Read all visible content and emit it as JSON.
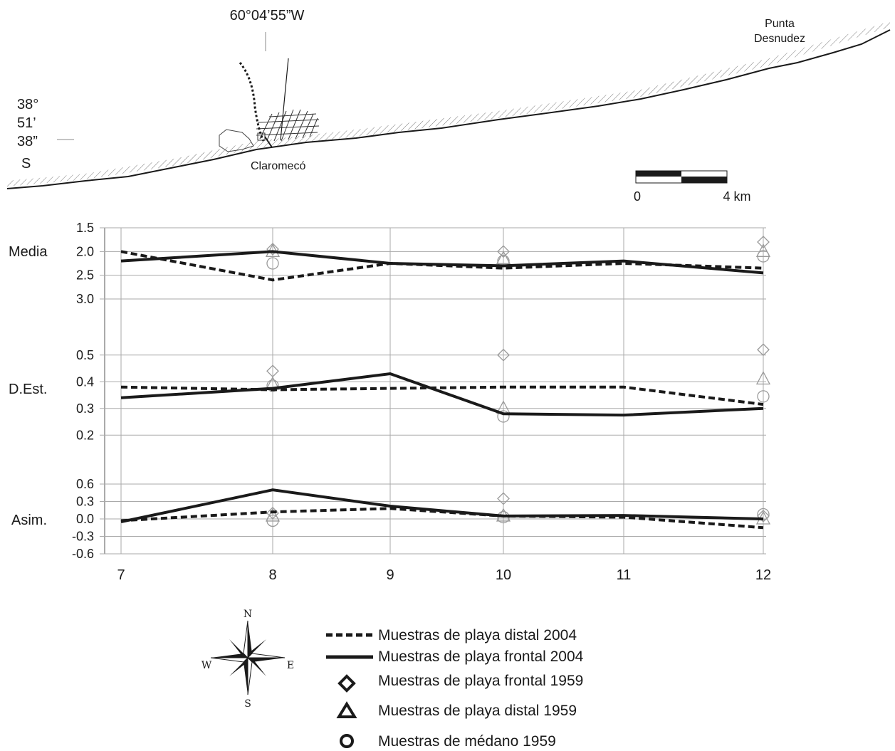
{
  "map": {
    "longitude_label": "60°04’55”W",
    "latitude_lines": [
      "38°",
      "51’",
      "38”",
      "S"
    ],
    "town_label": "Claromecó",
    "point_label_line1": "Punta",
    "point_label_line2": "Desnudez",
    "scale_start": "0",
    "scale_end": "4 km"
  },
  "compass": {
    "n": "N",
    "s": "S",
    "e": "E",
    "w": "W"
  },
  "chart_data": {
    "type": "line",
    "x": [
      7,
      8,
      9,
      10,
      11,
      12
    ],
    "x_ticks": [
      "7",
      "8",
      "9",
      "10",
      "11",
      "12"
    ],
    "grid": true,
    "panels": [
      {
        "name": "Media",
        "ylim": [
          3.3,
          1.5
        ],
        "y_ticks": [
          "1.5",
          "2.0",
          "2.5",
          "3.0"
        ],
        "y_tick_values": [
          1.5,
          2.0,
          2.5,
          3.0
        ],
        "series": {
          "distal_2004": [
            2.0,
            2.6,
            2.25,
            2.35,
            2.25,
            2.35
          ],
          "frontal_2004": [
            2.2,
            2.0,
            2.25,
            2.3,
            2.2,
            2.45
          ],
          "frontal_1959": [
            [
              8,
              1.95
            ],
            [
              10,
              2.0
            ],
            [
              12,
              1.8
            ]
          ],
          "distal_1959": [
            [
              8,
              2.0
            ],
            [
              10,
              2.15
            ],
            [
              12,
              2.0
            ]
          ],
          "medano_1959": [
            [
              8,
              2.25
            ],
            [
              10,
              2.2
            ],
            [
              12,
              2.1
            ]
          ]
        }
      },
      {
        "name": "D.Est.",
        "ylim": [
          0.15,
          0.55
        ],
        "y_ticks": [
          "0.5",
          "0.4",
          "0.3",
          "0.2"
        ],
        "y_tick_values": [
          0.5,
          0.4,
          0.3,
          0.2
        ],
        "series": {
          "distal_2004": [
            0.38,
            0.37,
            0.375,
            0.38,
            0.38,
            0.315
          ],
          "frontal_2004": [
            0.34,
            0.375,
            0.43,
            0.28,
            0.275,
            0.3
          ],
          "frontal_1959": [
            [
              8,
              0.44
            ],
            [
              10,
              0.5
            ],
            [
              12,
              0.52
            ]
          ],
          "distal_1959": [
            [
              8,
              0.39
            ],
            [
              10,
              0.3
            ],
            [
              12,
              0.41
            ]
          ],
          "medano_1959": [
            [
              8,
              0.385
            ],
            [
              10,
              0.27
            ],
            [
              12,
              0.345
            ]
          ]
        }
      },
      {
        "name": "Asim.",
        "ylim": [
          -0.6,
          0.6
        ],
        "y_ticks": [
          "0.6",
          "0.3",
          "0.0",
          "-0.3",
          "-0.6"
        ],
        "y_tick_values": [
          0.6,
          0.3,
          0.0,
          -0.3,
          -0.6
        ],
        "series": {
          "distal_2004": [
            -0.03,
            0.12,
            0.18,
            0.05,
            0.03,
            -0.15
          ],
          "frontal_2004": [
            -0.05,
            0.5,
            0.22,
            0.05,
            0.06,
            0.0
          ],
          "frontal_1959": [
            [
              8,
              0.1
            ],
            [
              10,
              0.35
            ],
            [
              12,
              0.05
            ]
          ],
          "distal_1959": [
            [
              8,
              0.05
            ],
            [
              10,
              0.05
            ],
            [
              12,
              0.0
            ]
          ],
          "medano_1959": [
            [
              8,
              -0.03
            ],
            [
              10,
              0.03
            ],
            [
              12,
              0.08
            ]
          ]
        }
      }
    ],
    "legend": [
      {
        "key": "distal_2004",
        "label": "Muestras de playa distal 2004"
      },
      {
        "key": "frontal_2004",
        "label": "Muestras de playa frontal 2004"
      },
      {
        "key": "frontal_1959",
        "label": "Muestras de playa frontal 1959"
      },
      {
        "key": "distal_1959",
        "label": "Muestras de playa distal 1959"
      },
      {
        "key": "medano_1959",
        "label": "Muestras de médano 1959"
      }
    ],
    "legend_position": "bottom"
  }
}
